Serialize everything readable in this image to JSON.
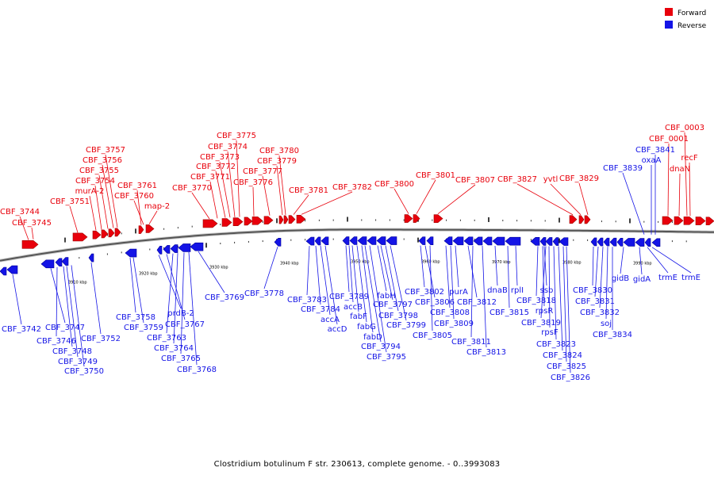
{
  "legend": [
    {
      "label": "Forward",
      "color": "#e8000b"
    },
    {
      "label": "Reverse",
      "color": "#1414e6"
    }
  ],
  "title": "Clostridium botulinum F str. 230613, complete genome. - 0..3993083",
  "tick_labels": [
    {
      "kbp": 3910,
      "text": "3910 kbp"
    },
    {
      "kbp": 3920,
      "text": "3920 kbp"
    },
    {
      "kbp": 3930,
      "text": "3930 kbp"
    },
    {
      "kbp": 3940,
      "text": "3940 kbp"
    },
    {
      "kbp": 3950,
      "text": "3950 kbp"
    },
    {
      "kbp": 3960,
      "text": "3960 kbp"
    },
    {
      "kbp": 3970,
      "text": "3970 kbp"
    },
    {
      "kbp": 3980,
      "text": "3980 kbp"
    },
    {
      "kbp": 3990,
      "text": "3990 kbp"
    }
  ],
  "forward_labels": [
    "CBF_3744",
    "CBF_3745",
    "CBF_3751",
    "murA-2",
    "CBF_3754",
    "CBF_3755",
    "CBF_3756",
    "CBF_3757",
    "CBF_3761",
    "CBF_3760",
    "map-2",
    "CBF_3770",
    "CBF_3771",
    "CBF_3772",
    "CBF_3773",
    "CBF_3774",
    "CBF_3775",
    "CBF_3776",
    "CBF_3777",
    "CBF_3779",
    "CBF_3780",
    "CBF_3781",
    "CBF_3782",
    "CBF_3800",
    "CBF_3801",
    "CBF_3807",
    "CBF_3827",
    "yvtl",
    "CBF_3829",
    "CBF_0003",
    "CBF_0001",
    "recF",
    "dnaN"
  ],
  "reverse_labels": [
    "CBF_3742",
    "CBF_3747",
    "CBF_3746",
    "CBF_3748",
    "CBF_3749",
    "CBF_3750",
    "CBF_3752",
    "CBF_3758",
    "CBF_3759",
    "prdB-2",
    "CBF_3767",
    "CBF_3763",
    "CBF_3764",
    "CBF_3765",
    "CBF_3768",
    "CBF_3769",
    "CBF_3778",
    "CBF_3783",
    "CBF_3784",
    "accA",
    "accD",
    "CBF_3789",
    "accB",
    "fabF",
    "fabG",
    "fabD",
    "CBF_3794",
    "CBF_3795",
    "fabH",
    "CBF_3797",
    "CBF_3798",
    "CBF_3799",
    "CBF_3802",
    "CBF_3806",
    "CBF_3805",
    "CBF_3808",
    "CBF_3809",
    "purA",
    "CBF_3812",
    "CBF_3811",
    "CBF_3813",
    "dnaB",
    "rplI",
    "CBF_3815",
    "ssb",
    "CBF_3818",
    "rpsR",
    "CBF_3819",
    "rpsF",
    "CBF_3823",
    "CBF_3824",
    "CBF_3825",
    "CBF_3826",
    "CBF_3830",
    "CBF_3831",
    "CBF_3832",
    "soj",
    "CBF_3834",
    "gidB",
    "gidA",
    "trmE",
    "CBF_3839",
    "CBF_3841",
    "oxaA"
  ]
}
